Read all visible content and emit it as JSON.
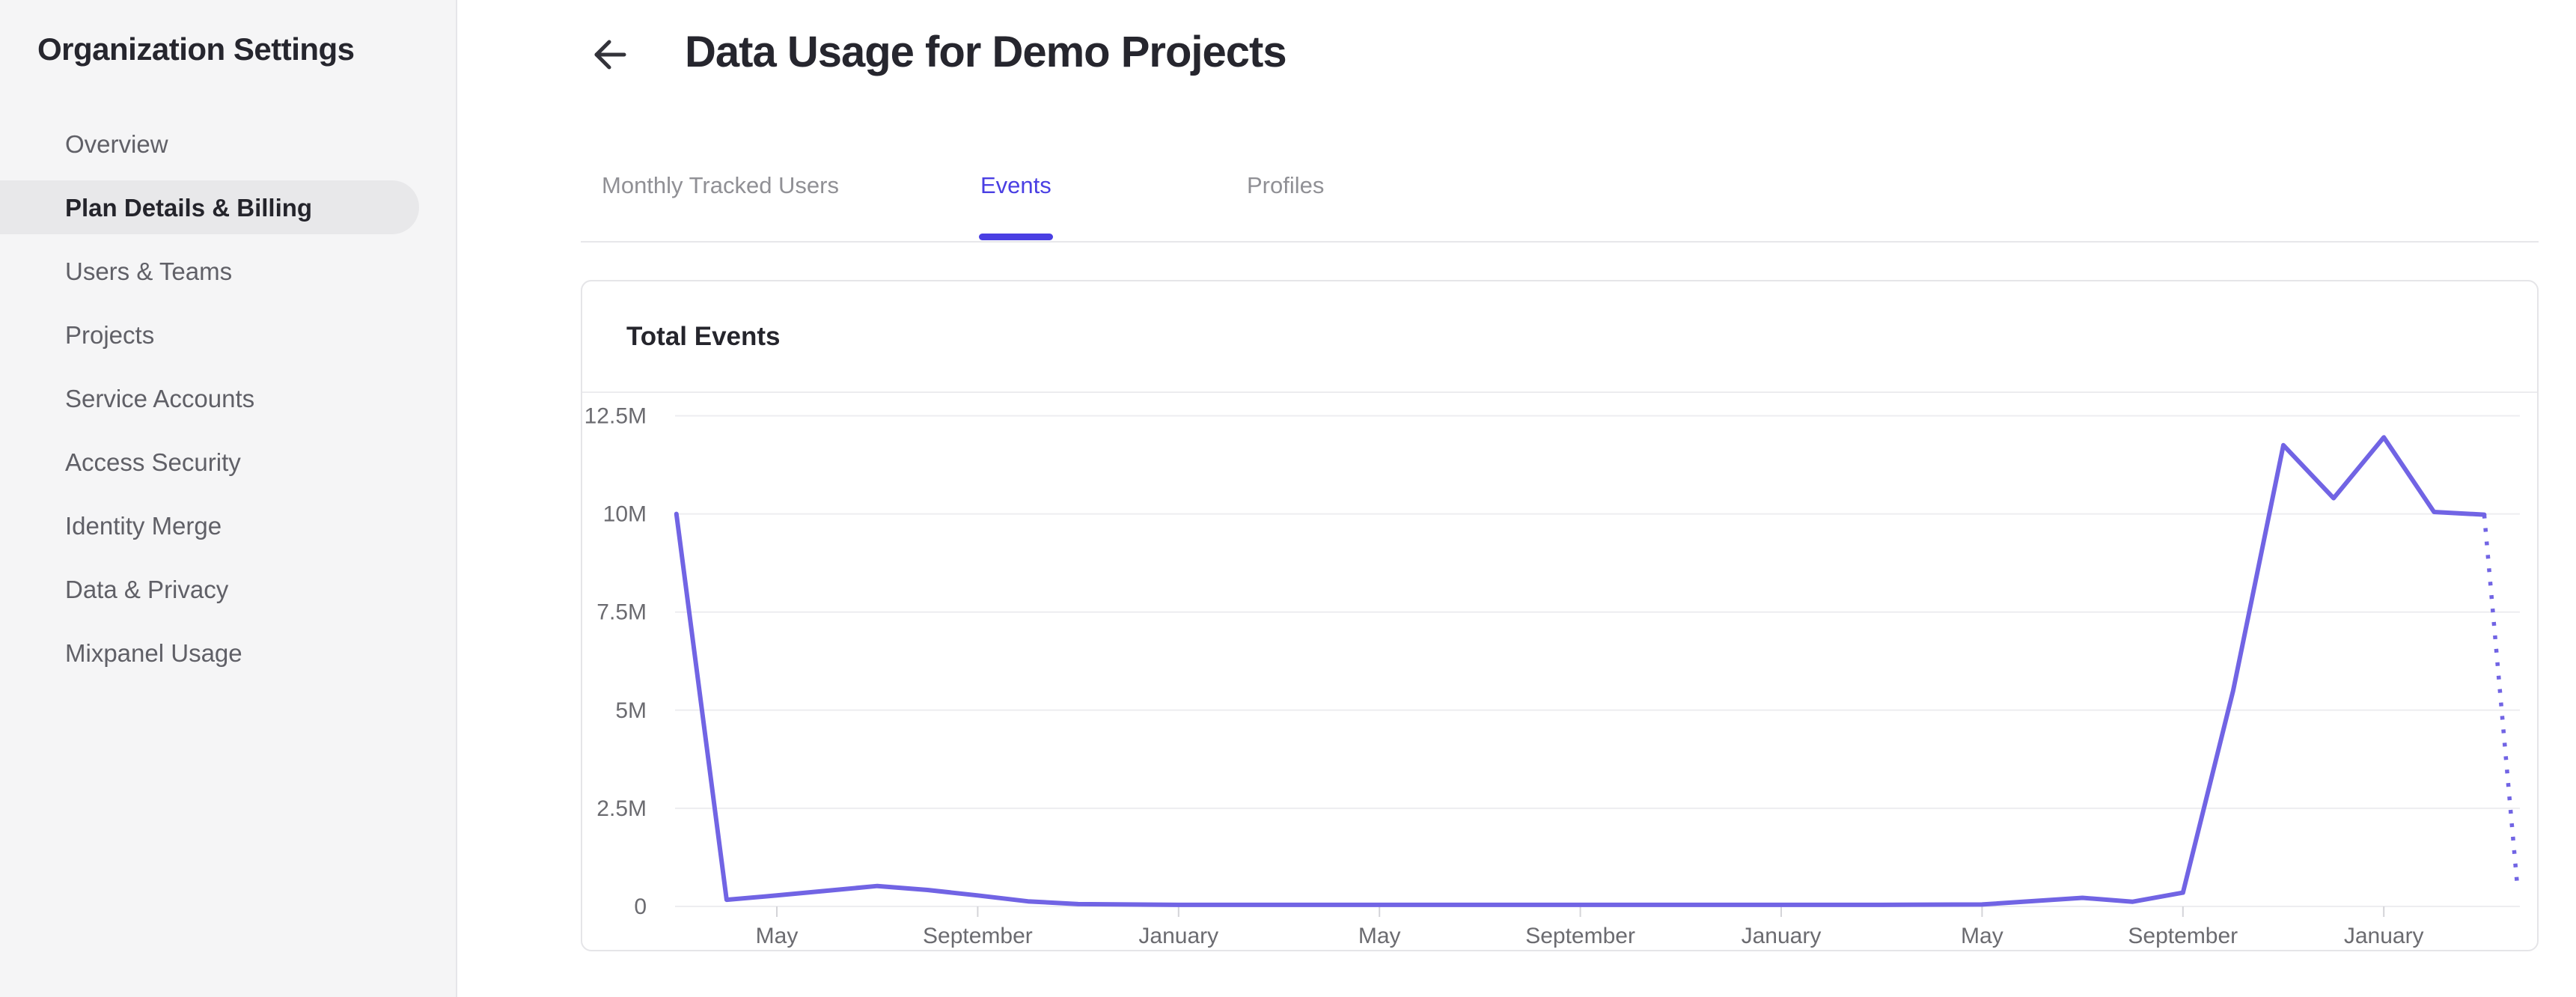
{
  "sidebar": {
    "title": "Organization Settings",
    "items": [
      {
        "label": "Overview",
        "active": false
      },
      {
        "label": "Plan Details & Billing",
        "active": true
      },
      {
        "label": "Users & Teams",
        "active": false
      },
      {
        "label": "Projects",
        "active": false
      },
      {
        "label": "Service Accounts",
        "active": false
      },
      {
        "label": "Access Security",
        "active": false
      },
      {
        "label": "Identity Merge",
        "active": false
      },
      {
        "label": "Data & Privacy",
        "active": false
      },
      {
        "label": "Mixpanel Usage",
        "active": false
      }
    ]
  },
  "header": {
    "back_icon": "arrow-left-icon",
    "title": "Data Usage for Demo Projects"
  },
  "tabs": [
    {
      "label": "Monthly Tracked Users",
      "active": false
    },
    {
      "label": "Events",
      "active": true
    },
    {
      "label": "Profiles",
      "active": false
    }
  ],
  "card": {
    "title": "Total Events"
  },
  "chart_data": {
    "type": "line",
    "title": "Total Events",
    "legend": "none",
    "grid": "horizontal",
    "ylim": [
      0,
      12500000
    ],
    "y_tick_labels": [
      "0",
      "2.5M",
      "5M",
      "7.5M",
      "10M",
      "12.5M"
    ],
    "x_tick_labels": [
      "May",
      "September",
      "January",
      "May",
      "September",
      "January",
      "May",
      "September",
      "January"
    ],
    "months_between_x_labels": 4,
    "values_unit": "millions_of_events",
    "series": [
      {
        "name": "Total Events",
        "color": "#7164e4",
        "style": "solid",
        "points": [
          {
            "m": -2,
            "v": 10.0
          },
          {
            "m": -1,
            "v": 0.17
          },
          {
            "m": 0,
            "v": 0.28
          },
          {
            "m": 1,
            "v": 0.4
          },
          {
            "m": 2,
            "v": 0.52
          },
          {
            "m": 3,
            "v": 0.42
          },
          {
            "m": 4,
            "v": 0.28
          },
          {
            "m": 5,
            "v": 0.13
          },
          {
            "m": 6,
            "v": 0.06
          },
          {
            "m": 8,
            "v": 0.04
          },
          {
            "m": 10,
            "v": 0.04
          },
          {
            "m": 12,
            "v": 0.04
          },
          {
            "m": 14,
            "v": 0.04
          },
          {
            "m": 16,
            "v": 0.04
          },
          {
            "m": 18,
            "v": 0.04
          },
          {
            "m": 20,
            "v": 0.04
          },
          {
            "m": 22,
            "v": 0.04
          },
          {
            "m": 24,
            "v": 0.05
          },
          {
            "m": 26,
            "v": 0.22
          },
          {
            "m": 27,
            "v": 0.12
          },
          {
            "m": 28,
            "v": 0.35
          },
          {
            "m": 29,
            "v": 5.5
          },
          {
            "m": 30,
            "v": 11.75
          },
          {
            "m": 31,
            "v": 10.4
          },
          {
            "m": 32,
            "v": 11.95
          },
          {
            "m": 33,
            "v": 10.05
          },
          {
            "m": 34,
            "v": 9.98
          }
        ],
        "projected_points": [
          {
            "m": 34,
            "v": 9.98
          },
          {
            "m": 34.66,
            "v": 0.5
          }
        ],
        "projected_style": "dotted"
      }
    ]
  }
}
